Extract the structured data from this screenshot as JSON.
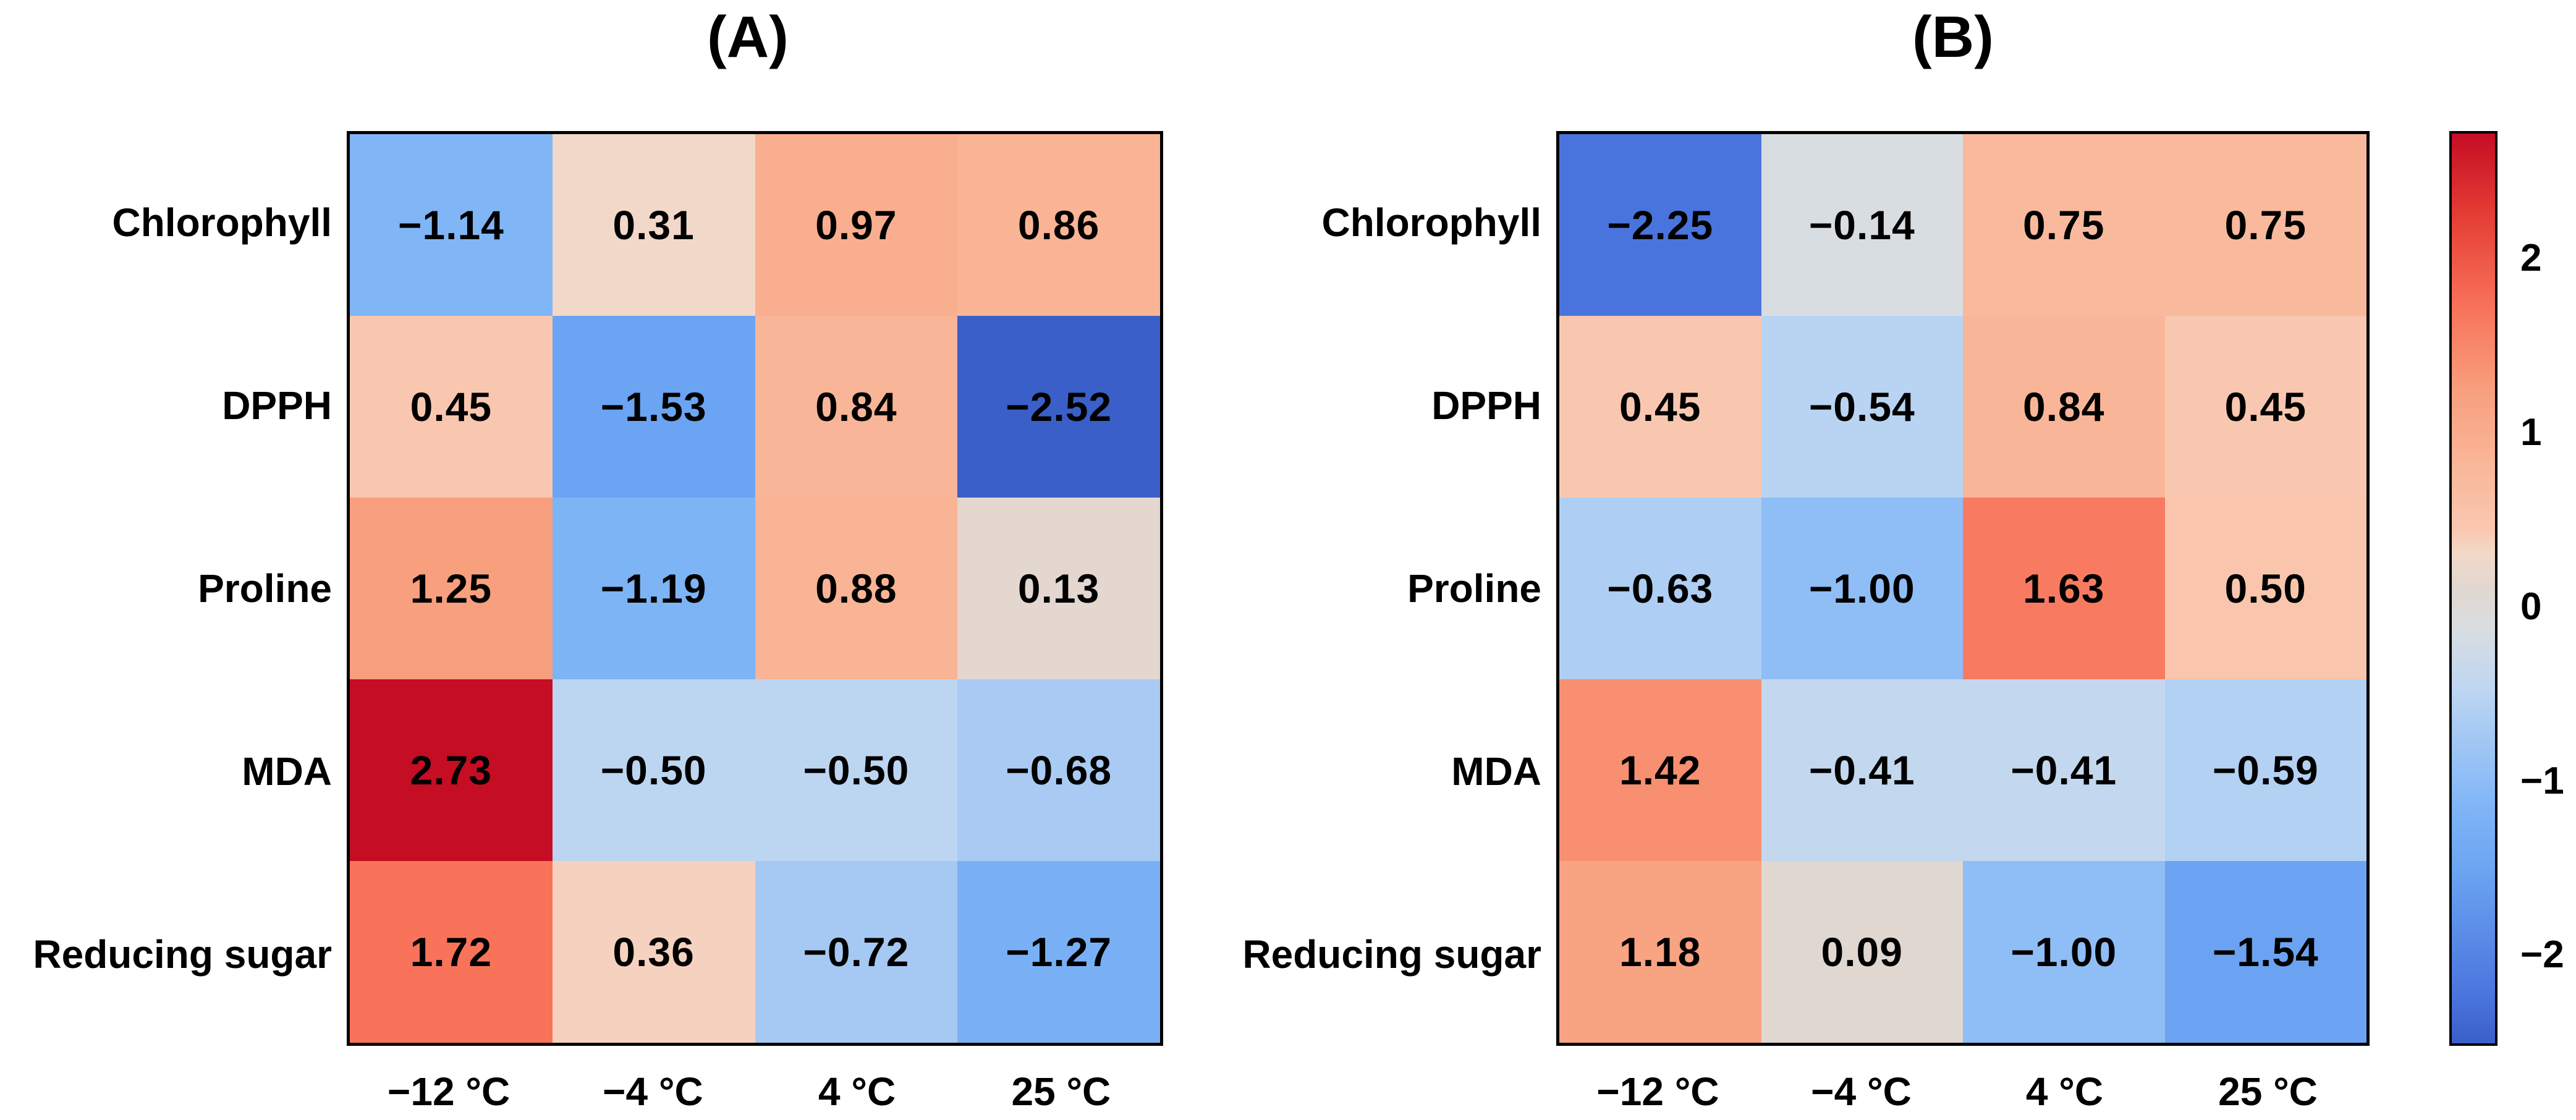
{
  "figure": {
    "background": "#ffffff",
    "border_color": "#000000",
    "text_color": "#000000",
    "panels": [
      {
        "id": "A",
        "title": "(A)",
        "row_labels": [
          "Chlorophyll",
          "DPPH",
          "Proline",
          "MDA",
          "Reducing sugar"
        ],
        "col_labels": [
          "−12 °C",
          "−4 °C",
          "4 °C",
          "25 °C"
        ],
        "values": [
          [
            -1.14,
            0.31,
            0.97,
            0.86
          ],
          [
            0.45,
            -1.53,
            0.84,
            -2.52
          ],
          [
            1.25,
            -1.19,
            0.88,
            0.13
          ],
          [
            2.73,
            -0.5,
            -0.5,
            -0.68
          ],
          [
            1.72,
            0.36,
            -0.72,
            -1.27
          ]
        ]
      },
      {
        "id": "B",
        "title": "(B)",
        "row_labels": [
          "Chlorophyll",
          "DPPH",
          "Proline",
          "MDA",
          "Reducing sugar"
        ],
        "col_labels": [
          "−12 °C",
          "−4 °C",
          "4 °C",
          "25 °C"
        ],
        "values": [
          [
            -2.25,
            -0.14,
            0.75,
            0.75
          ],
          [
            0.45,
            -0.54,
            0.84,
            0.45
          ],
          [
            -0.63,
            -1.0,
            1.63,
            0.5
          ],
          [
            1.42,
            -0.41,
            -0.41,
            -0.59
          ],
          [
            1.18,
            0.09,
            -1.0,
            -1.54
          ]
        ]
      }
    ],
    "colorbar": {
      "tick_labels": [
        "2",
        "1",
        "0",
        "−1",
        "−2"
      ],
      "tick_values": [
        2,
        1,
        0,
        -1,
        -2
      ],
      "vmin": -2.52,
      "vmax": 2.73
    },
    "colormap_stops": [
      [
        -2.52,
        "#3a5fc8"
      ],
      [
        -2.25,
        "#4a74dd"
      ],
      [
        -1.53,
        "#6ba4f2"
      ],
      [
        -1.14,
        "#80b6f6"
      ],
      [
        -1.0,
        "#8fbdf6"
      ],
      [
        -0.68,
        "#a9cbf3"
      ],
      [
        -0.5,
        "#bcd6f2"
      ],
      [
        -0.14,
        "#d8dde2"
      ],
      [
        0.1,
        "#e1d7d0"
      ],
      [
        0.31,
        "#f2d8c8"
      ],
      [
        0.45,
        "#f9c7b0"
      ],
      [
        0.86,
        "#f9b496"
      ],
      [
        1.25,
        "#f89f7d"
      ],
      [
        1.72,
        "#f8735a"
      ],
      [
        2.25,
        "#e53e35"
      ],
      [
        2.73,
        "#c50d24"
      ]
    ]
  },
  "chart_data": [
    {
      "type": "heatmap",
      "title": "(A)",
      "x_categories": [
        "−12 °C",
        "−4 °C",
        "4 °C",
        "25 °C"
      ],
      "y_categories": [
        "Chlorophyll",
        "DPPH",
        "Proline",
        "MDA",
        "Reducing sugar"
      ],
      "values": [
        [
          -1.14,
          0.31,
          0.97,
          0.86
        ],
        [
          0.45,
          -1.53,
          0.84,
          -2.52
        ],
        [
          1.25,
          -1.19,
          0.88,
          0.13
        ],
        [
          2.73,
          -0.5,
          -0.5,
          -0.68
        ],
        [
          1.72,
          0.36,
          -0.72,
          -1.27
        ]
      ],
      "cell_label_format": "2 decimals",
      "colormap": "blue-gray-red diverging (coolwarm-like)",
      "color_range": [
        -2.52,
        2.73
      ],
      "colorbar_ticks": [
        2,
        1,
        0,
        -1,
        -2
      ],
      "colorbar_position": "right of panel B, shared",
      "grid": false,
      "legend": false
    },
    {
      "type": "heatmap",
      "title": "(B)",
      "x_categories": [
        "−12 °C",
        "−4 °C",
        "4 °C",
        "25 °C"
      ],
      "y_categories": [
        "Chlorophyll",
        "DPPH",
        "Proline",
        "MDA",
        "Reducing sugar"
      ],
      "values": [
        [
          -2.25,
          -0.14,
          0.75,
          0.75
        ],
        [
          0.45,
          -0.54,
          0.84,
          0.45
        ],
        [
          -0.63,
          -1.0,
          1.63,
          0.5
        ],
        [
          1.42,
          -0.41,
          -0.41,
          -0.59
        ],
        [
          1.18,
          0.09,
          -1.0,
          -1.54
        ]
      ],
      "cell_label_format": "2 decimals",
      "colormap": "blue-gray-red diverging (coolwarm-like)",
      "color_range": [
        -2.52,
        2.73
      ],
      "colorbar_ticks": [
        2,
        1,
        0,
        -1,
        -2
      ],
      "colorbar_position": "right of panel B, shared",
      "grid": false,
      "legend": false
    }
  ]
}
